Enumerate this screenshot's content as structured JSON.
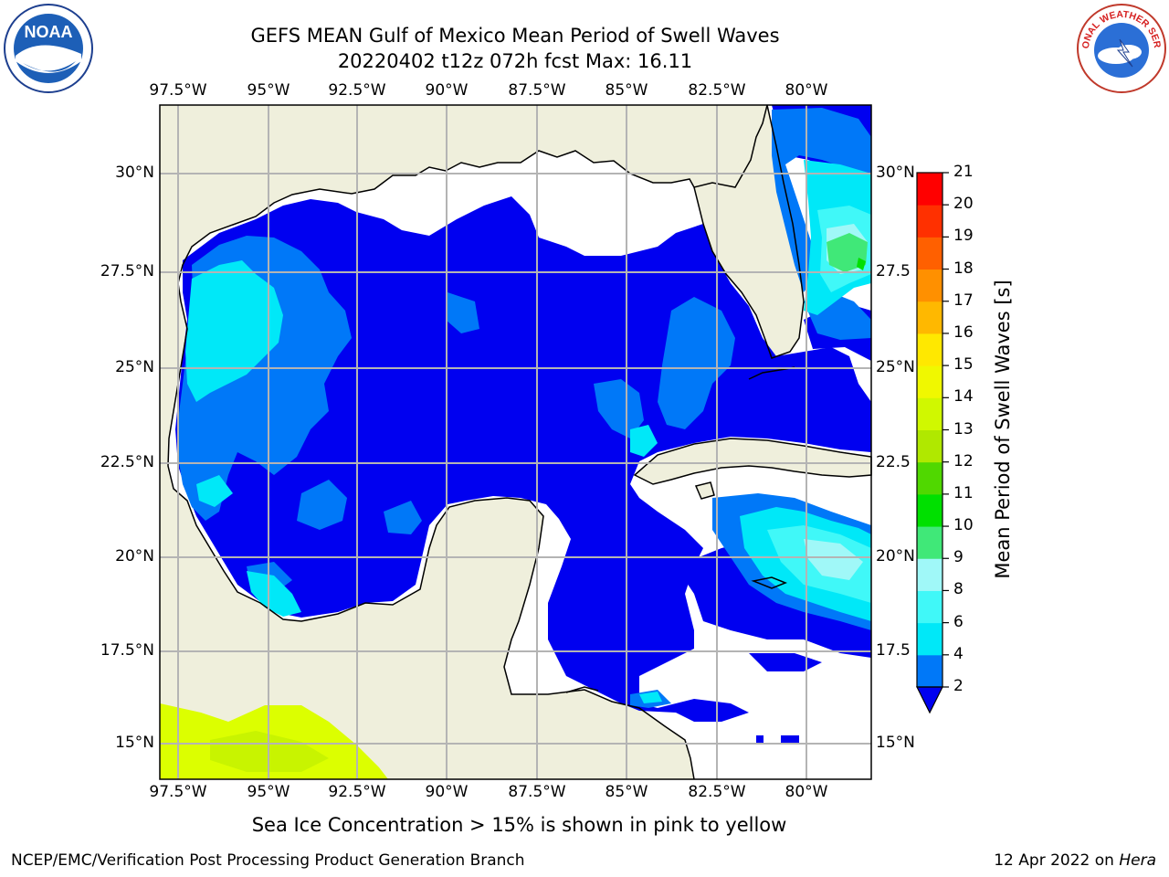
{
  "title": {
    "line1": "GEFS MEAN Gulf of Mexico Mean Period of Swell Waves",
    "line2": "20220402 t12z 072h fcst   Max: 16.11"
  },
  "logos": {
    "left": {
      "icon": "noaa-logo",
      "text": "NOAA"
    },
    "right": {
      "icon": "nws-logo",
      "text": "NATIONAL WEATHER SERVICE"
    }
  },
  "map": {
    "lon_labels": [
      "97.5°W",
      "95°W",
      "92.5°W",
      "90°W",
      "87.5°W",
      "85°W",
      "82.5°W",
      "80°W"
    ],
    "lat_labels_left": [
      "30°N",
      "27.5°N",
      "25°N",
      "22.5°N",
      "20°N",
      "17.5°N",
      "15°N"
    ],
    "lat_labels_right": [
      "30°N",
      "27.5",
      "25°N",
      "22.5",
      "20°N",
      "17.5",
      "15°N"
    ],
    "lon_range": [
      -98,
      -79
    ],
    "lat_range": [
      14,
      32
    ],
    "land_color": "#efefdc",
    "ocean_empty_color": "#ffffff",
    "ice_color": "#dcff00"
  },
  "colorbar": {
    "label": "Mean Period of Swell Waves [s]",
    "ticks": [
      "2",
      "4",
      "6",
      "8",
      "9",
      "10",
      "11",
      "12",
      "13",
      "14",
      "15",
      "16",
      "17",
      "18",
      "19",
      "20",
      "21"
    ],
    "colors": [
      "#0000f0",
      "#0078f8",
      "#00e8f8",
      "#40f8f8",
      "#a0f8f8",
      "#40e878",
      "#00e000",
      "#50d800",
      "#b0e800",
      "#d0f800",
      "#f0f800",
      "#ffe800",
      "#ffb800",
      "#ff9000",
      "#ff6000",
      "#ff3000",
      "#ff0000"
    ]
  },
  "footer": {
    "note": "Sea Ice Concentration > 15% is shown in pink to yellow",
    "left": "NCEP/EMC/Verification Post Processing Product Generation Branch",
    "date": "12 Apr 2022 on ",
    "host": "Hera"
  }
}
